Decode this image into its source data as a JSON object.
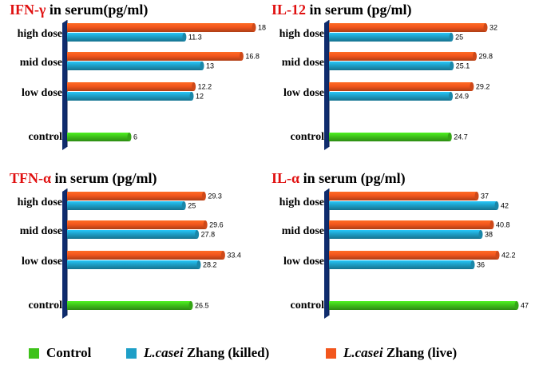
{
  "colors": {
    "control": "#3ec21a",
    "killed": "#1e9fc7",
    "live": "#f2561d",
    "axis": "#0f2c6e",
    "title_highlight": "#e01010"
  },
  "legend": [
    {
      "key": "control",
      "prefix": "",
      "italic": "",
      "suffix": "Control"
    },
    {
      "key": "killed",
      "prefix": "",
      "italic": "L.casei",
      "suffix": " Zhang (killed)"
    },
    {
      "key": "live",
      "prefix": "",
      "italic": "L.casei",
      "suffix": " Zhang (live)"
    }
  ],
  "chart_data": [
    {
      "type": "bar",
      "orientation": "horizontal",
      "title_highlight": "IFN-γ",
      "title_rest": " in serum(pg/ml)",
      "categories": [
        "high dose",
        "mid dose",
        "low dose",
        "control"
      ],
      "xlim": [
        0,
        18
      ],
      "series": [
        {
          "key": "live",
          "values": [
            18,
            16.8,
            12.2,
            null
          ],
          "labels": [
            "18",
            "16.8",
            "12.2",
            ""
          ]
        },
        {
          "key": "killed",
          "values": [
            11.3,
            13,
            12,
            null
          ],
          "labels": [
            "11.3",
            "13",
            "12",
            ""
          ]
        },
        {
          "key": "control",
          "values": [
            null,
            null,
            null,
            6
          ],
          "labels": [
            "",
            "",
            "",
            "6"
          ]
        }
      ]
    },
    {
      "type": "bar",
      "orientation": "horizontal",
      "title_highlight": "IL-12",
      "title_rest": " in serum (pg/ml)",
      "categories": [
        "high dose",
        "mid dose",
        "low dose",
        "control"
      ],
      "xlim": [
        0,
        40
      ],
      "series": [
        {
          "key": "live",
          "values": [
            32,
            29.8,
            29.2,
            null
          ],
          "labels": [
            "32",
            "29.8",
            "29.2",
            ""
          ]
        },
        {
          "key": "killed",
          "values": [
            25,
            25.1,
            24.9,
            null
          ],
          "labels": [
            "25",
            "25.1",
            "24.9",
            ""
          ]
        },
        {
          "key": "control",
          "values": [
            null,
            null,
            null,
            24.7
          ],
          "labels": [
            "",
            "",
            "",
            "24.7"
          ]
        }
      ]
    },
    {
      "type": "bar",
      "orientation": "horizontal",
      "title_highlight": "TFN-α",
      "title_rest": " in serum (pg/ml)",
      "categories": [
        "high dose",
        "mid dose",
        "low dose",
        "control"
      ],
      "xlim": [
        0,
        40
      ],
      "series": [
        {
          "key": "live",
          "values": [
            29.3,
            29.6,
            33.4,
            null
          ],
          "labels": [
            "29.3",
            "29.6",
            "33.4",
            ""
          ]
        },
        {
          "key": "killed",
          "values": [
            25,
            27.8,
            28.2,
            null
          ],
          "labels": [
            "25",
            "27.8",
            "28.2",
            ""
          ]
        },
        {
          "key": "control",
          "values": [
            null,
            null,
            null,
            26.5
          ],
          "labels": [
            "",
            "",
            "",
            "26.5"
          ]
        }
      ]
    },
    {
      "type": "bar",
      "orientation": "horizontal",
      "title_highlight": "IL-α",
      "title_rest": " in serum (pg/ml)",
      "categories": [
        "high dose",
        "mid dose",
        "low dose",
        "control"
      ],
      "xlim": [
        0,
        49
      ],
      "series": [
        {
          "key": "live",
          "values": [
            37,
            40.8,
            42.2,
            null
          ],
          "labels": [
            "37",
            "40.8",
            "42.2",
            ""
          ]
        },
        {
          "key": "killed",
          "values": [
            42,
            38,
            36,
            null
          ],
          "labels": [
            "42",
            "38",
            "36",
            ""
          ]
        },
        {
          "key": "control",
          "values": [
            null,
            null,
            null,
            47
          ],
          "labels": [
            "",
            "",
            "",
            "47"
          ]
        }
      ]
    }
  ]
}
